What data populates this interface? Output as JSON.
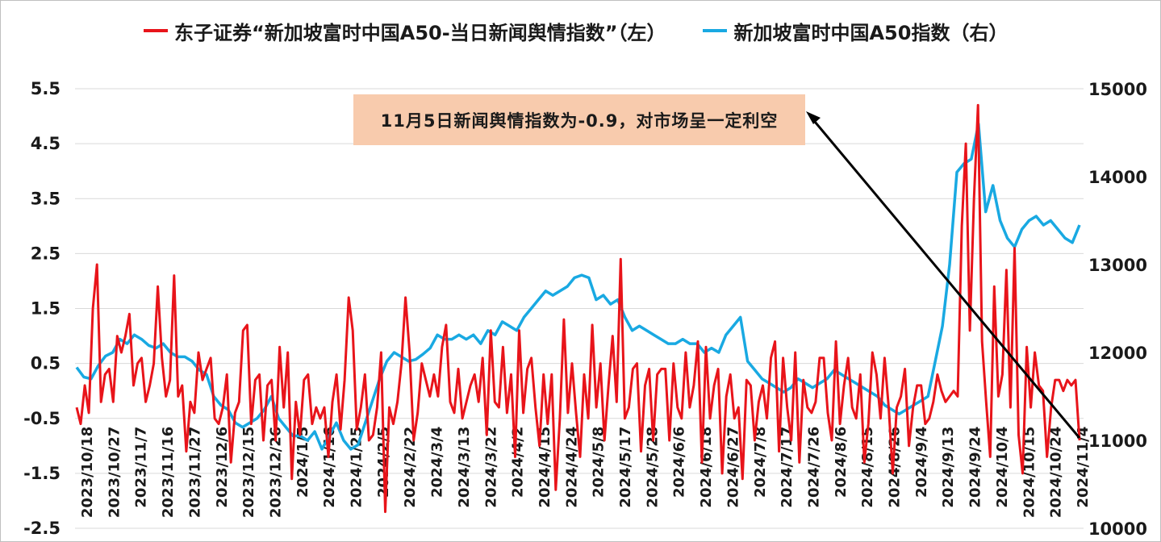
{
  "legend": {
    "sentiment_label": "东子证券“新加坡富时中国A50-当日新闻舆情指数”（左）",
    "index_label": "新加坡富时中国A50指数（右）"
  },
  "annotation_text": "11月5日新闻舆情指数为-0.9，对市场呈一定利空",
  "colors": {
    "sentiment": "#e8141a",
    "index": "#19a9e2",
    "arrow": "#000000",
    "annotation_bg": "#f8cbad"
  },
  "chart_data": {
    "type": "line",
    "title": "",
    "legend_position": "top",
    "grid": "horizontal",
    "y_left": {
      "range": [
        -2.5,
        5.5
      ],
      "ticks": [
        5.5,
        4.5,
        3.5,
        2.5,
        1.5,
        0.5,
        -0.5,
        -1.5,
        -2.5
      ]
    },
    "y_right": {
      "range": [
        10000,
        15000
      ],
      "ticks": [
        15000,
        14000,
        13000,
        12000,
        11000,
        10000
      ]
    },
    "x_tick_labels": [
      "2023/10/18",
      "2023/10/27",
      "2023/11/7",
      "2023/11/16",
      "2023/11/27",
      "2023/12/6",
      "2023/12/15",
      "2023/12/26",
      "2024/1/5",
      "2024/1/16",
      "2024/1/25",
      "2024/2/5",
      "2024/2/22",
      "2024/3/4",
      "2024/3/13",
      "2024/3/22",
      "2024/4/2",
      "2024/4/15",
      "2024/4/24",
      "2024/5/8",
      "2024/5/17",
      "2024/5/28",
      "2024/6/6",
      "2024/6/18",
      "2024/6/27",
      "2024/7/8",
      "2024/7/17",
      "2024/7/26",
      "2024/8/6",
      "2024/8/15",
      "2024/8/26",
      "2024/9/4",
      "2024/9/13",
      "2024/9/24",
      "2024/10/4",
      "2024/10/15",
      "2024/10/24",
      "2024/11/4"
    ],
    "series": [
      {
        "name": "东子证券“新加坡富时中国A50-当日新闻舆情指数”（左）",
        "axis": "left",
        "color": "#e8141a",
        "values": [
          -0.3,
          -0.6,
          0.1,
          -0.4,
          1.5,
          2.3,
          -0.2,
          0.3,
          0.4,
          -0.2,
          1.0,
          0.7,
          1.0,
          1.4,
          0.1,
          0.5,
          0.6,
          -0.2,
          0.1,
          0.5,
          1.9,
          0.6,
          -0.1,
          0.2,
          2.1,
          -0.1,
          0.1,
          -1.1,
          -0.2,
          -0.4,
          0.7,
          0.2,
          0.4,
          0.6,
          -0.5,
          -0.6,
          -0.3,
          0.3,
          -1.3,
          -0.4,
          -0.2,
          1.1,
          1.2,
          -0.6,
          0.2,
          0.3,
          -0.9,
          0.1,
          0.2,
          -0.9,
          0.8,
          -0.3,
          0.7,
          -1.6,
          -0.2,
          -0.8,
          0.2,
          0.3,
          -0.6,
          -0.3,
          -0.5,
          -0.3,
          -1.2,
          -0.2,
          0.3,
          -0.7,
          0.2,
          1.7,
          1.1,
          -0.7,
          -0.3,
          0.3,
          -0.9,
          -0.8,
          -0.3,
          0.7,
          -2.2,
          -0.3,
          -0.6,
          -0.2,
          0.5,
          1.7,
          0.7,
          -0.9,
          -0.4,
          0.5,
          0.2,
          -0.1,
          0.3,
          -0.1,
          0.8,
          1.2,
          -0.2,
          -0.4,
          0.4,
          -0.5,
          -0.2,
          0.1,
          0.3,
          -0.2,
          0.6,
          -0.8,
          1.1,
          -0.2,
          -0.3,
          0.8,
          -0.4,
          0.3,
          -1.2,
          1.1,
          -0.4,
          0.4,
          0.6,
          -0.3,
          -1.0,
          0.3,
          -0.6,
          0.3,
          -1.8,
          -0.5,
          1.3,
          -0.4,
          0.5,
          -0.4,
          -1.2,
          0.3,
          -0.5,
          1.2,
          -0.3,
          0.5,
          -0.9,
          0.1,
          1.0,
          -0.2,
          2.4,
          -0.5,
          -0.3,
          0.4,
          0.5,
          -1.1,
          0.1,
          0.4,
          -0.9,
          0.3,
          0.4,
          0.4,
          -0.9,
          0.5,
          -0.3,
          -0.5,
          0.7,
          -0.3,
          0.1,
          0.9,
          -1.3,
          0.8,
          -0.5,
          0.1,
          0.4,
          -1.5,
          -0.1,
          0.3,
          -0.5,
          -0.3,
          -1.6,
          0.2,
          0.1,
          -0.9,
          -0.2,
          0.1,
          -0.5,
          0.6,
          0.9,
          -1.1,
          0.6,
          -0.3,
          -0.9,
          0.7,
          -1.3,
          0.2,
          -0.3,
          -0.4,
          -0.2,
          0.6,
          0.6,
          -0.4,
          -0.9,
          0.9,
          -0.6,
          0.1,
          0.6,
          -0.3,
          -0.5,
          0.3,
          -1.3,
          -0.6,
          0.7,
          0.3,
          -0.5,
          0.6,
          -0.3,
          -1.5,
          -0.3,
          -0.1,
          0.4,
          -1.0,
          -0.3,
          0.1,
          0.1,
          -0.6,
          -0.5,
          -0.2,
          0.3,
          0.0,
          -0.2,
          -0.1,
          0.0,
          -0.1,
          3.0,
          4.5,
          1.1,
          3.5,
          5.2,
          0.9,
          -0.2,
          -1.2,
          1.9,
          -0.1,
          0.3,
          2.2,
          -0.3,
          2.6,
          -0.8,
          -1.5,
          0.8,
          -0.3,
          0.7,
          0.1,
          0.0,
          -1.2,
          -0.3,
          0.2,
          0.2,
          0.0,
          0.2,
          0.1,
          0.2,
          -0.9
        ]
      },
      {
        "name": "新加坡富时中国A50指数（右）",
        "axis": "right",
        "color": "#19a9e2",
        "values": [
          11830,
          11720,
          11700,
          11850,
          11960,
          12000,
          12150,
          12100,
          12200,
          12150,
          12080,
          12050,
          12100,
          12000,
          11950,
          11950,
          11900,
          11800,
          11750,
          11500,
          11400,
          11350,
          11200,
          11150,
          11200,
          11250,
          11350,
          11500,
          11250,
          11150,
          11050,
          11050,
          11000,
          11100,
          10900,
          11050,
          11200,
          11000,
          10900,
          10950,
          11200,
          11450,
          11700,
          11900,
          12000,
          11950,
          11900,
          11920,
          11980,
          12050,
          12200,
          12150,
          12150,
          12200,
          12150,
          12200,
          12100,
          12250,
          12200,
          12350,
          12300,
          12250,
          12400,
          12500,
          12600,
          12700,
          12650,
          12700,
          12750,
          12850,
          12880,
          12850,
          12600,
          12650,
          12550,
          12600,
          12400,
          12250,
          12300,
          12250,
          12200,
          12150,
          12100,
          12100,
          12150,
          12100,
          12100,
          12000,
          12050,
          12000,
          12200,
          12300,
          12400,
          11900,
          11800,
          11700,
          11650,
          11600,
          11550,
          11600,
          11700,
          11650,
          11600,
          11650,
          11700,
          11800,
          11750,
          11700,
          11650,
          11600,
          11550,
          11500,
          11400,
          11350,
          11300,
          11350,
          11400,
          11450,
          11500,
          11900,
          12300,
          13000,
          14050,
          14150,
          14200,
          14600,
          13600,
          13900,
          13500,
          13300,
          13200,
          13400,
          13500,
          13550,
          13450,
          13500,
          13400,
          13300,
          13250,
          13450
        ]
      }
    ]
  }
}
